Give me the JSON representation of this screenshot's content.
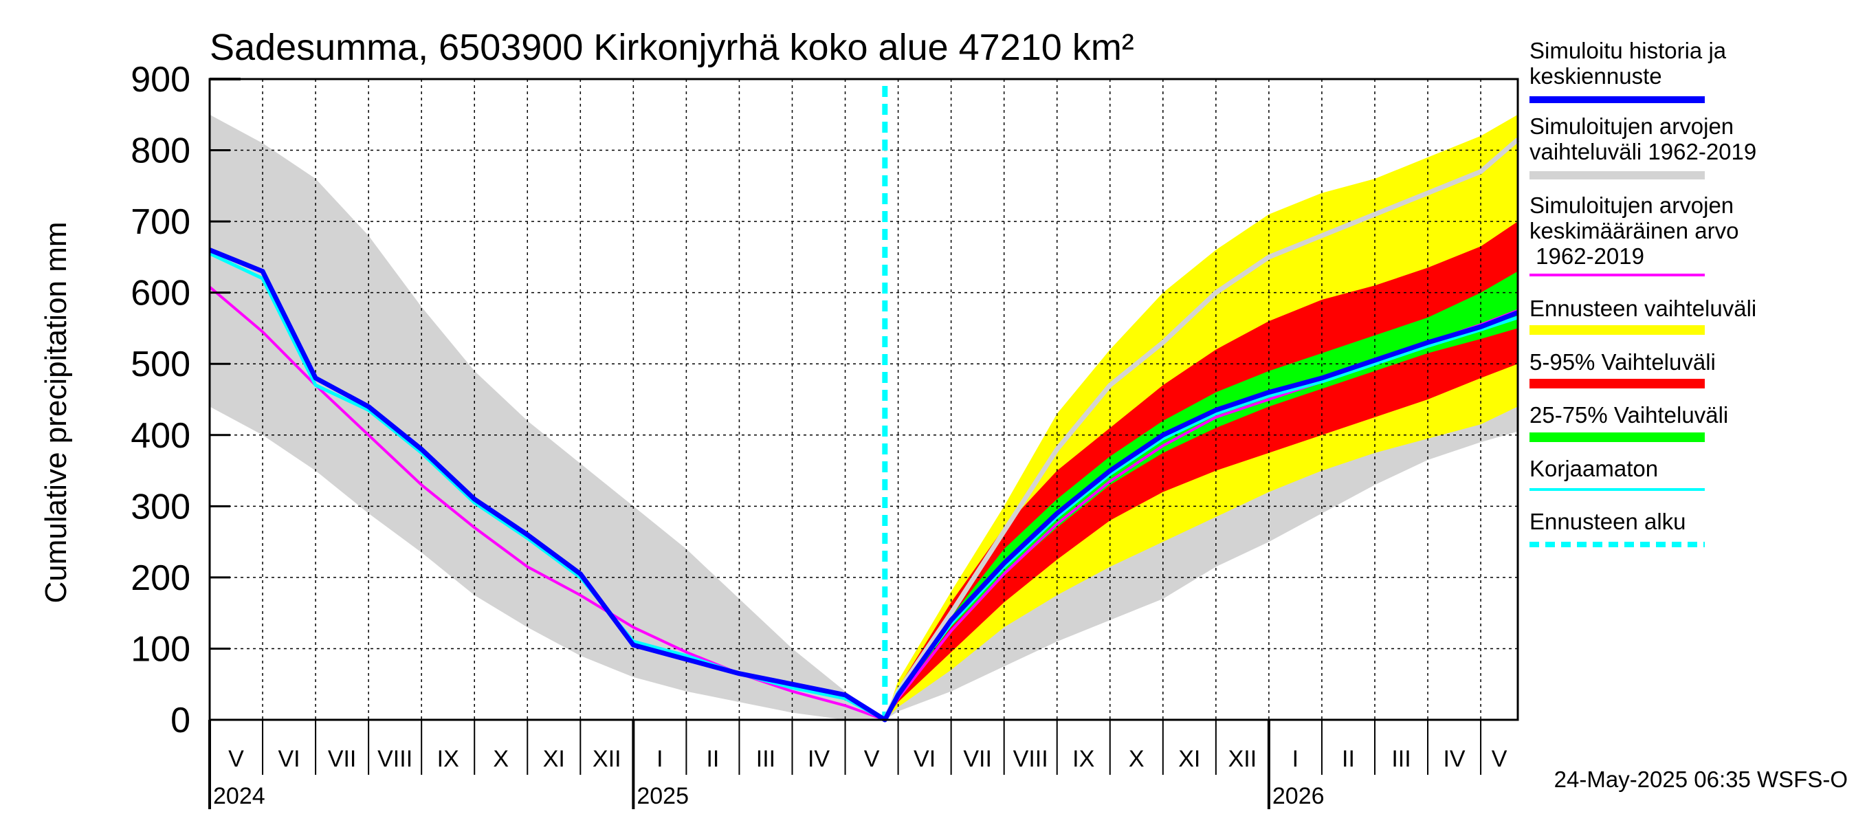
{
  "chart_data": {
    "type": "area",
    "title": "Sadesumma, 6503900 Kirkonjyrhä koko alue 47210 km²",
    "ylabel": "Cumulative precipitation   mm",
    "ylim": [
      0,
      900
    ],
    "y_ticks": [
      0,
      100,
      200,
      300,
      400,
      500,
      600,
      700,
      800,
      900
    ],
    "y_tick_labels": [
      "0",
      "100",
      "200",
      "300",
      "400",
      "500",
      "600",
      "700",
      "800",
      "900"
    ],
    "x_range_months": [
      0,
      24.7
    ],
    "months": [
      {
        "label": "V",
        "start": 0
      },
      {
        "label": "VI",
        "start": 1
      },
      {
        "label": "VII",
        "start": 2
      },
      {
        "label": "VIII",
        "start": 3
      },
      {
        "label": "IX",
        "start": 4
      },
      {
        "label": "X",
        "start": 5
      },
      {
        "label": "XI",
        "start": 6
      },
      {
        "label": "XII",
        "start": 7
      },
      {
        "label": "I",
        "start": 8
      },
      {
        "label": "II",
        "start": 9
      },
      {
        "label": "III",
        "start": 10
      },
      {
        "label": "IV",
        "start": 11
      },
      {
        "label": "V",
        "start": 12
      },
      {
        "label": "VI",
        "start": 13
      },
      {
        "label": "VII",
        "start": 14
      },
      {
        "label": "VIII",
        "start": 15
      },
      {
        "label": "IX",
        "start": 16
      },
      {
        "label": "X",
        "start": 17
      },
      {
        "label": "XI",
        "start": 18
      },
      {
        "label": "XII",
        "start": 19
      },
      {
        "label": "I",
        "start": 20
      },
      {
        "label": "II",
        "start": 21
      },
      {
        "label": "III",
        "start": 22
      },
      {
        "label": "IV",
        "start": 23
      },
      {
        "label": "V",
        "start": 24
      }
    ],
    "years": [
      {
        "label": "2024",
        "month": 0
      },
      {
        "label": "2025",
        "month": 8
      },
      {
        "label": "2026",
        "month": 20
      }
    ],
    "forecast_start": 12.75,
    "series": [
      {
        "name": "Simuloitujen arvojen vaihteluväli 1962-2019",
        "kind": "band",
        "color": "#d3d3d3",
        "x": [
          0,
          1,
          2,
          3,
          4,
          5,
          6,
          7,
          8,
          9,
          10,
          11,
          12,
          12.75,
          13,
          14,
          15,
          16,
          17,
          18,
          19,
          20,
          21,
          22,
          23,
          24,
          24.7
        ],
        "lower": [
          440,
          400,
          350,
          290,
          235,
          175,
          130,
          90,
          60,
          40,
          25,
          10,
          0,
          0,
          12,
          40,
          75,
          110,
          140,
          170,
          215,
          250,
          290,
          330,
          365,
          390,
          405
        ],
        "upper": [
          850,
          810,
          760,
          680,
          580,
          490,
          420,
          360,
          300,
          240,
          170,
          100,
          40,
          0,
          50,
          130,
          210,
          300,
          380,
          460,
          530,
          580,
          640,
          700,
          750,
          790,
          845
        ]
      },
      {
        "name": "Ennusteen vaihteluväli",
        "kind": "band",
        "color": "#ffff00",
        "x": [
          12.75,
          13,
          14,
          15,
          16,
          17,
          18,
          19,
          20,
          21,
          22,
          23,
          24,
          24.7
        ],
        "lower": [
          0,
          18,
          70,
          130,
          175,
          215,
          250,
          285,
          320,
          350,
          375,
          395,
          415,
          440
        ],
        "upper": [
          0,
          55,
          180,
          300,
          430,
          520,
          600,
          660,
          710,
          740,
          760,
          790,
          820,
          850
        ]
      },
      {
        "name": "5-95% Vaihteluväli",
        "kind": "band",
        "color": "#ff0000",
        "x": [
          12.75,
          13,
          14,
          15,
          16,
          17,
          18,
          19,
          20,
          21,
          22,
          23,
          24,
          24.7
        ],
        "lower": [
          0,
          25,
          95,
          165,
          225,
          280,
          320,
          350,
          375,
          400,
          425,
          450,
          480,
          500
        ],
        "upper": [
          0,
          45,
          165,
          270,
          350,
          410,
          470,
          520,
          560,
          590,
          610,
          635,
          665,
          700
        ]
      },
      {
        "name": "25-75% Vaihteluväli",
        "kind": "band",
        "color": "#00ff00",
        "x": [
          12.75,
          13,
          14,
          15,
          16,
          17,
          18,
          19,
          20,
          21,
          22,
          23,
          24,
          24.7
        ],
        "lower": [
          0,
          32,
          130,
          205,
          270,
          330,
          375,
          410,
          440,
          465,
          490,
          515,
          535,
          550
        ],
        "upper": [
          0,
          40,
          145,
          240,
          310,
          370,
          420,
          460,
          490,
          515,
          540,
          565,
          600,
          630
        ]
      },
      {
        "name": "Simuloitujen arvojen keskimääräinen arvo 1962-2019, upper member",
        "kind": "line",
        "color": "#d3d3d3",
        "width": 7,
        "x": [
          12.75,
          13,
          14,
          15,
          16,
          17,
          18,
          19,
          20,
          21,
          22,
          23,
          24,
          24.7
        ],
        "values": [
          0,
          40,
          150,
          265,
          380,
          470,
          530,
          600,
          650,
          680,
          710,
          740,
          770,
          815
        ]
      },
      {
        "name": "Simuloitujen arvojen keskimääräinen arvo 1962-2019",
        "kind": "line",
        "color": "#ff00ff",
        "width": 4,
        "x": [
          0,
          1,
          2,
          3,
          4,
          5,
          6,
          7,
          8,
          9,
          10,
          11,
          12,
          12.75,
          13,
          14,
          15,
          16,
          17,
          18,
          19,
          20,
          21,
          22,
          23,
          24,
          24.7
        ],
        "values": [
          608,
          545,
          470,
          400,
          330,
          270,
          215,
          175,
          130,
          95,
          65,
          40,
          20,
          0,
          30,
          125,
          205,
          275,
          335,
          385,
          425,
          450,
          475,
          500,
          530,
          555,
          575
        ]
      },
      {
        "name": "Korjaamaton",
        "kind": "line",
        "color": "#00ffff",
        "width": 5,
        "x": [
          0,
          1,
          2,
          3,
          4,
          5,
          6,
          7,
          8,
          9,
          10,
          11,
          12,
          12.75,
          13,
          14,
          15,
          16,
          17,
          18,
          19,
          20,
          21,
          22,
          23,
          24,
          24.7
        ],
        "values": [
          655,
          620,
          470,
          435,
          375,
          305,
          255,
          200,
          110,
          90,
          65,
          45,
          30,
          0,
          38,
          135,
          215,
          285,
          345,
          395,
          430,
          455,
          475,
          500,
          525,
          548,
          565
        ]
      },
      {
        "name": "Simuloitu historia ja keskiennuste",
        "kind": "line",
        "color": "#0000ff",
        "width": 7,
        "x": [
          0,
          1,
          2,
          3,
          4,
          5,
          6,
          7,
          8,
          9,
          10,
          11,
          12,
          12.75,
          13,
          14,
          15,
          16,
          17,
          18,
          19,
          20,
          21,
          22,
          23,
          24,
          24.7
        ],
        "values": [
          660,
          630,
          480,
          440,
          380,
          310,
          260,
          205,
          105,
          85,
          65,
          50,
          35,
          0,
          35,
          140,
          220,
          290,
          350,
          400,
          435,
          460,
          480,
          505,
          530,
          552,
          572
        ]
      }
    ],
    "legend": [
      {
        "label": "Simuloitu historia ja keskiennuste",
        "color": "#0000ff",
        "style": "solid",
        "thickness": 10
      },
      {
        "label": "Simuloitujen arvojen vaihteluväli 1962-2019",
        "color": "#d3d3d3",
        "style": "solid",
        "thickness": 12
      },
      {
        "label": "Simuloitujen arvojen keskimääräinen arvo 1962-2019",
        "color": "#ff00ff",
        "style": "solid",
        "thickness": 4
      },
      {
        "label": "Ennusteen vaihteluväli",
        "color": "#ffff00",
        "style": "solid",
        "thickness": 14
      },
      {
        "label": "5-95% Vaihteluväli",
        "color": "#ff0000",
        "style": "solid",
        "thickness": 14
      },
      {
        "label": "25-75% Vaihteluväli",
        "color": "#00ff00",
        "style": "solid",
        "thickness": 14
      },
      {
        "label": "Korjaamaton",
        "color": "#00ffff",
        "style": "solid",
        "thickness": 4
      },
      {
        "label": "Ennusteen alku",
        "color": "#00ffff",
        "style": "dashed",
        "thickness": 8
      }
    ],
    "footer": "24-May-2025 06:35 WSFS-O",
    "grid": true
  }
}
